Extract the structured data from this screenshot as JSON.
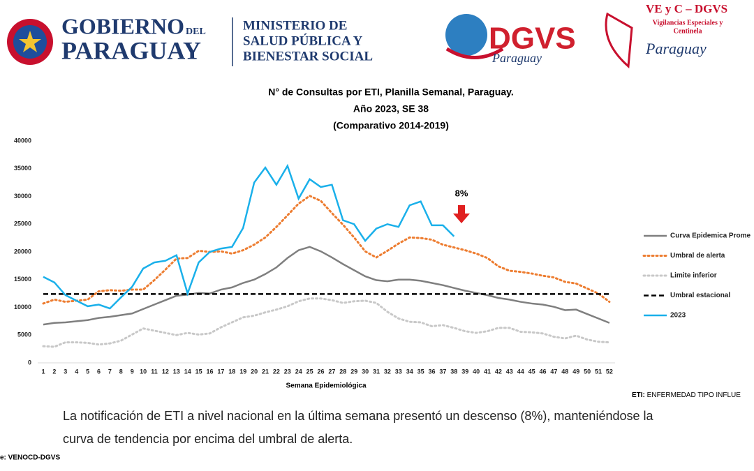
{
  "header": {
    "gov_line1": "GOBIERNO",
    "gov_del": "DEL",
    "gov_line2": "PARAGUAY",
    "ministry": [
      "MINISTERIO DE",
      "SALUD PÚBLICA Y",
      "BIENESTAR SOCIAL"
    ],
    "dgvs": "DGVS",
    "dgvs_sub": "Paraguay",
    "vec_title": "VE y C – DGVS",
    "vec_sub": [
      "Vigilancias Especiales y",
      "Centinela"
    ],
    "vec_script": "Paraguay"
  },
  "chart_data": {
    "type": "line",
    "title": [
      "N° de Consultas por ETI, Planilla Semanal, Paraguay.",
      "Año 2023, SE 38",
      "(Comparativo 2014-2019)"
    ],
    "x_label": "Semana Epidemiológica",
    "categories": [
      "1",
      "2",
      "3",
      "4",
      "5",
      "6",
      "7",
      "8",
      "9",
      "10",
      "11",
      "12",
      "13",
      "14",
      "15",
      "16",
      "17",
      "18",
      "19",
      "20",
      "21",
      "22",
      "23",
      "24",
      "25",
      "26",
      "27",
      "28",
      "29",
      "30",
      "31",
      "32",
      "33",
      "34",
      "35",
      "36",
      "37",
      "38",
      "39",
      "40",
      "41",
      "42",
      "43",
      "44",
      "45",
      "46",
      "47",
      "48",
      "49",
      "50",
      "51",
      "52"
    ],
    "ylim": [
      0,
      40000
    ],
    "yticks": [
      0,
      5000,
      10000,
      15000,
      20000,
      25000,
      30000,
      35000,
      40000
    ],
    "legend": "right",
    "annotation": "8%",
    "series": [
      {
        "name": "Curva Epidemica Prome",
        "color": "#7f7f7f",
        "style": "solid",
        "values": [
          6900,
          7200,
          7300,
          7500,
          7700,
          8100,
          8300,
          8600,
          8900,
          9700,
          10500,
          11300,
          12100,
          12300,
          12600,
          12500,
          13200,
          13600,
          14400,
          15000,
          16000,
          17200,
          18900,
          20300,
          20900,
          20100,
          19000,
          17800,
          16700,
          15600,
          14900,
          14700,
          15000,
          15000,
          14800,
          14400,
          14000,
          13500,
          13000,
          12600,
          12200,
          11700,
          11400,
          11000,
          10700,
          10500,
          10100,
          9500,
          9600,
          8800,
          8000,
          7200
        ]
      },
      {
        "name": "Umbral de alerta",
        "color": "#ed7d31",
        "style": "dotted",
        "values": [
          10700,
          11400,
          11000,
          11200,
          11400,
          12900,
          13100,
          13000,
          13200,
          13200,
          14900,
          16800,
          18800,
          18900,
          20200,
          20000,
          20100,
          19700,
          20300,
          21300,
          22600,
          24500,
          26600,
          28700,
          30100,
          29200,
          27000,
          24900,
          22600,
          20100,
          19000,
          20200,
          21500,
          22600,
          22500,
          22200,
          21300,
          20800,
          20300,
          19700,
          18900,
          17400,
          16600,
          16400,
          16100,
          15700,
          15400,
          14600,
          14300,
          13400,
          12500,
          11000
        ]
      },
      {
        "name": "Limite inferior",
        "color": "#c8c8c8",
        "style": "dotted",
        "values": [
          3000,
          2900,
          3700,
          3700,
          3600,
          3300,
          3500,
          4000,
          5100,
          6200,
          5800,
          5400,
          5000,
          5400,
          5100,
          5300,
          6400,
          7300,
          8200,
          8500,
          9100,
          9600,
          10200,
          11100,
          11600,
          11600,
          11300,
          10800,
          11100,
          11200,
          10800,
          9200,
          8000,
          7400,
          7300,
          6600,
          6800,
          6300,
          5700,
          5400,
          5700,
          6300,
          6300,
          5600,
          5500,
          5300,
          4700,
          4400,
          4900,
          4200,
          3800,
          3700
        ]
      },
      {
        "name": "Umbral estacional",
        "color": "#000000",
        "style": "dashed",
        "values": [
          12400,
          12400,
          12400,
          12400,
          12400,
          12400,
          12400,
          12400,
          12400,
          12400,
          12400,
          12400,
          12400,
          12400,
          12400,
          12400,
          12400,
          12400,
          12400,
          12400,
          12400,
          12400,
          12400,
          12400,
          12400,
          12400,
          12400,
          12400,
          12400,
          12400,
          12400,
          12400,
          12400,
          12400,
          12400,
          12400,
          12400,
          12400,
          12400,
          12400,
          12400,
          12400,
          12400,
          12400,
          12400,
          12400,
          12400,
          12400,
          12400,
          12400,
          12400,
          12400
        ]
      },
      {
        "name": "2023",
        "color": "#1ab0ea",
        "style": "solid",
        "values": [
          15500,
          14500,
          12200,
          11200,
          10200,
          10500,
          9800,
          11800,
          13700,
          17000,
          18100,
          18400,
          19400,
          12500,
          18100,
          20000,
          20600,
          20900,
          24300,
          32500,
          35200,
          32100,
          35500,
          29600,
          33100,
          31700,
          32100,
          25700,
          25000,
          22000,
          24200,
          25000,
          24500,
          28400,
          29100,
          24800,
          24800,
          22800,
          null,
          null,
          null,
          null,
          null,
          null,
          null,
          null,
          null,
          null,
          null,
          null,
          null,
          null
        ]
      }
    ]
  },
  "footnote": {
    "bold": "ETI:",
    "text": "ENFERMEDAD TIPO INFLUE"
  },
  "body_text": [
    "La notificación de ETI a nivel nacional en la última semana presentó un descenso (8%), manteniéndose la",
    "curva de tendencia  por encima del umbral de alerta."
  ],
  "source": "e: VENOCD-DGVS"
}
